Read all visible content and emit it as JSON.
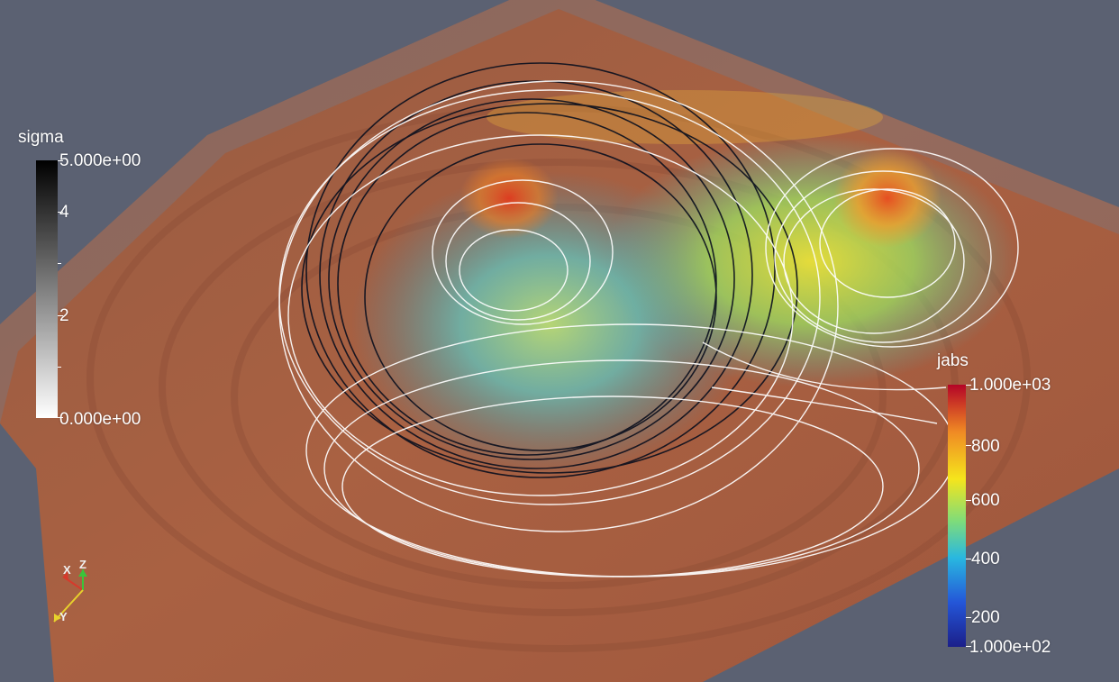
{
  "sigma_legend": {
    "title": "sigma",
    "range": [
      0,
      5
    ],
    "max_label": "5.000e+00",
    "min_label": "0.000e+00",
    "tick_labels": [
      "4",
      "2"
    ],
    "colors": {
      "max": "#000000",
      "min": "#ffffff"
    }
  },
  "jabs_legend": {
    "title": "jabs",
    "range": [
      100,
      1000
    ],
    "max_label": "1.000e+03",
    "min_label": "1.000e+02",
    "tick_labels": [
      "800",
      "600",
      "400",
      "200"
    ],
    "colormap": [
      "#b40426",
      "#f08a24",
      "#f5e51c",
      "#7fdc7a",
      "#29b8e0",
      "#2456d8",
      "#1b1f8a"
    ]
  },
  "orientation_axes": {
    "labels": [
      "X",
      "Z",
      "Y"
    ],
    "colors": {
      "x": "#d63a2c",
      "y": "#e8d22c",
      "z": "#3cc43a"
    }
  },
  "scene": {
    "background_color": "#5b6172",
    "streamline_colors": [
      "#ffffff",
      "#0a0f1e"
    ]
  }
}
